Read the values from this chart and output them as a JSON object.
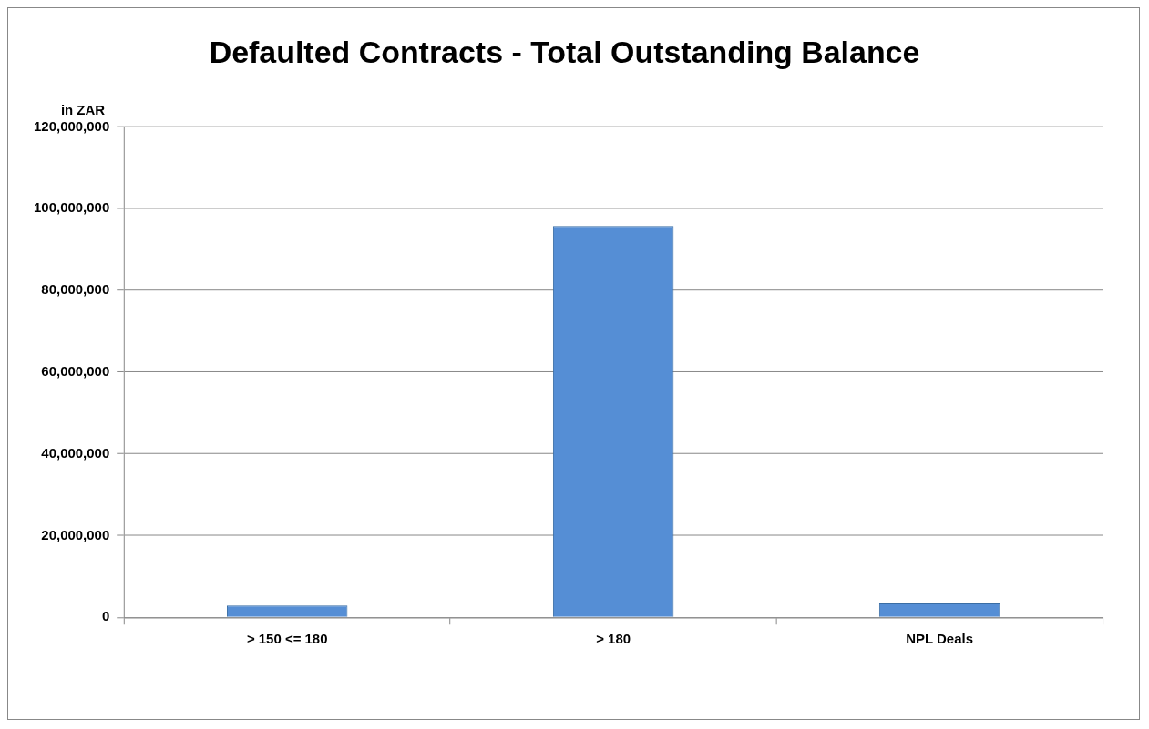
{
  "chart_data": {
    "type": "bar",
    "title": "Defaulted Contracts - Total Outstanding Balance",
    "ylabel": "in ZAR",
    "categories": [
      "> 150 <= 180",
      "> 180",
      "NPL Deals"
    ],
    "values": [
      2900000,
      95800000,
      3400000
    ],
    "color": "#558ed5",
    "ylim": [
      0,
      120000000
    ],
    "yticks": [
      {
        "value": 0,
        "label": "0"
      },
      {
        "value": 20000000,
        "label": "20,000,000"
      },
      {
        "value": 40000000,
        "label": "40,000,000"
      },
      {
        "value": 60000000,
        "label": "60,000,000"
      },
      {
        "value": 80000000,
        "label": "80,000,000"
      },
      {
        "value": 100000000,
        "label": "100,000,000"
      },
      {
        "value": 120000000,
        "label": "120,000,000"
      }
    ],
    "grid": "y",
    "legend": false
  }
}
